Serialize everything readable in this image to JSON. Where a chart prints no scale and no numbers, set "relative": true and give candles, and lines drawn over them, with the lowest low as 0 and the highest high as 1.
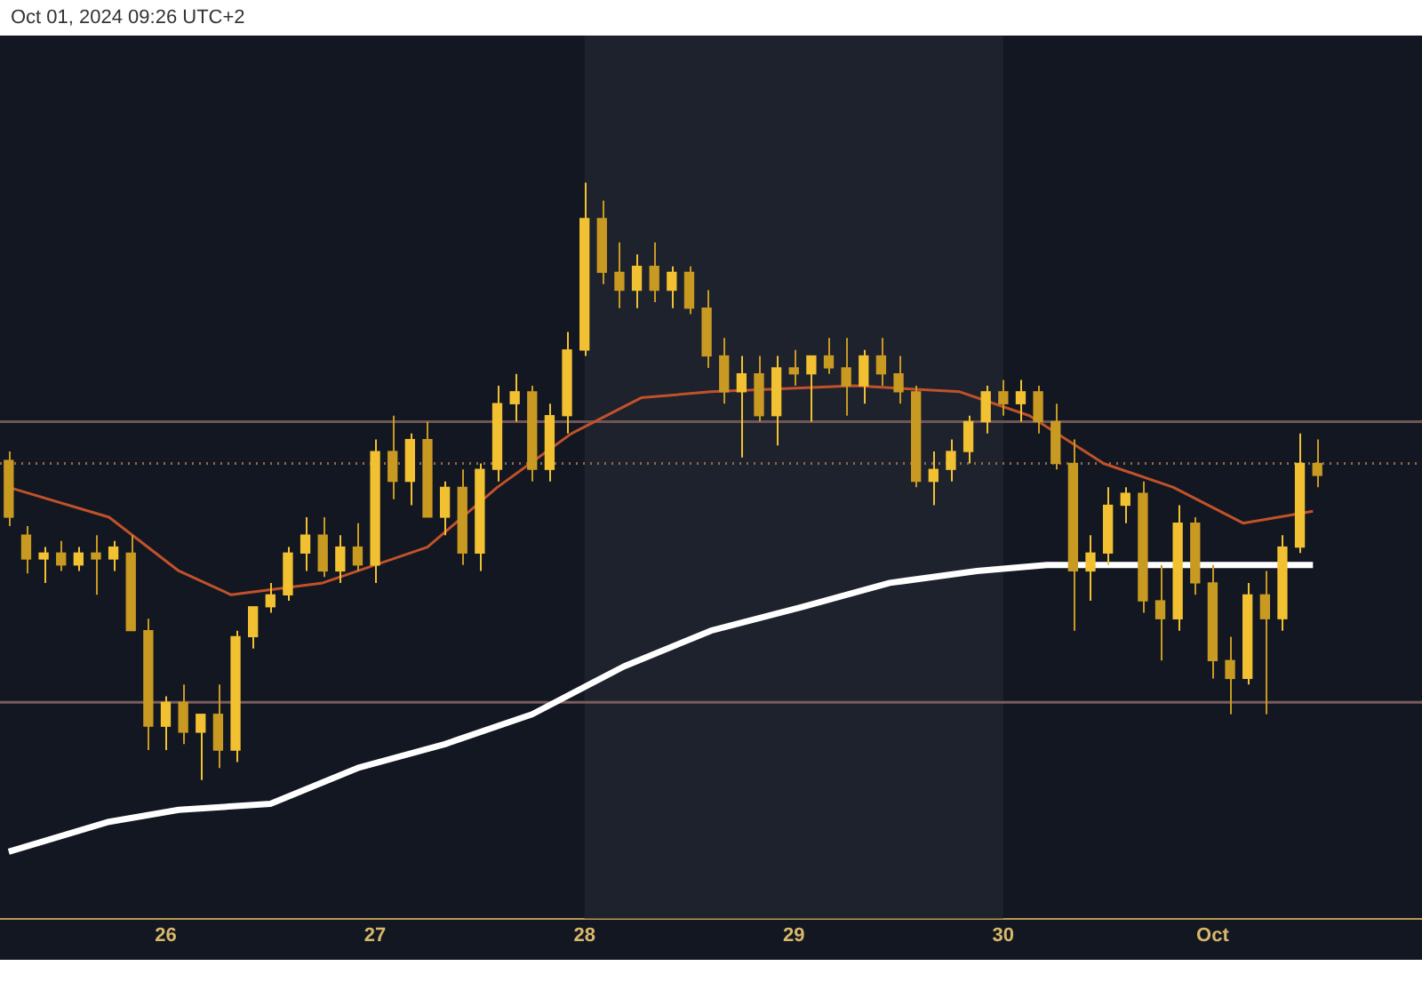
{
  "chart_data": {
    "type": "candlestick",
    "relative": true,
    "annotations": [
      "Oct 01, 2024 09:26 UTC+2"
    ],
    "xlim": [
      "2024-09-25T05:00",
      "2024-10-02T00:00"
    ],
    "xticks": [
      {
        "value": "2024-09-26",
        "label": "26"
      },
      {
        "value": "2024-09-27",
        "label": "27"
      },
      {
        "value": "2024-09-28",
        "label": "28"
      },
      {
        "value": "2024-09-29",
        "label": "29"
      },
      {
        "value": "2024-09-30",
        "label": "30"
      },
      {
        "value": "2024-10-01",
        "label": "Oct"
      }
    ],
    "grid": false,
    "bands": [
      {
        "axis": "x",
        "from": "2024-09-28",
        "to": "2024-09-30",
        "color": "#1e222d"
      }
    ],
    "ref_lines": [
      {
        "axis": "y",
        "value": 0.53,
        "color": "#8a6a4a",
        "line_style": "dotted"
      },
      {
        "axis": "y",
        "value": 0.13,
        "color": "#7a5c5c",
        "line_style": "solid"
      },
      {
        "axis": "y",
        "value": 0.6,
        "color": "#6e5656",
        "line_style": "solid"
      }
    ],
    "series": [
      {
        "type": "line",
        "color": "#ffffff",
        "x": [
          "2024-09-25T06:00",
          "2024-09-25T17:30",
          "2024-09-26T01:30",
          "2024-09-26T12:00",
          "2024-09-26T22:00",
          "2024-09-27T08:00",
          "2024-09-27T18:00",
          "2024-09-28T04:30",
          "2024-09-28T14:30",
          "2024-09-29T01:00",
          "2024-09-29T11:00",
          "2024-09-29T21:00",
          "2024-09-30T05:00",
          "2024-09-30T17:30",
          "2024-10-01T03:30",
          "2024-10-01T11:30"
        ],
        "values": [
          -0.12,
          -0.07,
          -0.05,
          -0.04,
          0.02,
          0.06,
          0.11,
          0.19,
          0.25,
          0.29,
          0.33,
          0.35,
          0.36,
          0.36,
          0.36,
          0.36
        ]
      },
      {
        "type": "line",
        "color": "#c0522a",
        "x": [
          "2024-09-25T06:00",
          "2024-09-25T17:30",
          "2024-09-26T01:30",
          "2024-09-26T07:30",
          "2024-09-26T18:00",
          "2024-09-27T06:00",
          "2024-09-27T14:00",
          "2024-09-27T22:30",
          "2024-09-28T06:30",
          "2024-09-28T14:30",
          "2024-09-29T07:00",
          "2024-09-29T19:00",
          "2024-09-30T03:00",
          "2024-09-30T11:30",
          "2024-09-30T19:30",
          "2024-10-01T03:30",
          "2024-10-01T11:30"
        ],
        "values": [
          0.49,
          0.44,
          0.35,
          0.31,
          0.33,
          0.39,
          0.49,
          0.58,
          0.64,
          0.65,
          0.66,
          0.65,
          0.61,
          0.53,
          0.49,
          0.43,
          0.45
        ]
      },
      {
        "colors": [
          "#c99a22",
          "#c99a22",
          "#f2c131",
          "#c99a22",
          "#f2c131",
          "#c99a22",
          "#f2c131",
          "#c99a22",
          "#c99a22",
          "#f2c131",
          "#c99a22",
          "#f2c131",
          "#c99a22",
          "#f2c131",
          "#f2c131",
          "#f2c131",
          "#f2c131",
          "#f2c131",
          "#c99a22",
          "#f2c131",
          "#c99a22",
          "#f2c131",
          "#c99a22",
          "#f2c131",
          "#c99a22",
          "#f2c131",
          "#c99a22",
          "#f2c131",
          "#f2c131",
          "#f2c131",
          "#c99a22",
          "#f2c131",
          "#f2c131",
          "#f2c131",
          "#c99a22",
          "#c99a22",
          "#f2c131",
          "#c99a22",
          "#f2c131",
          "#c99a22",
          "#c99a22",
          "#c99a22",
          "#f2c131",
          "#c99a22",
          "#f2c131",
          "#c99a22",
          "#f2c131",
          "#c99a22",
          "#c99a22",
          "#f2c131",
          "#c99a22",
          "#c99a22",
          "#c99a22",
          "#f2c131",
          "#f2c131",
          "#f2c131",
          "#f2c131",
          "#c99a22",
          "#f2c131",
          "#c99a22",
          "#c99a22",
          "#c99a22",
          "#f2c131",
          "#f2c131",
          "#f2c131",
          "#c99a22",
          "#c99a22",
          "#f2c131",
          "#c99a22",
          "#c99a22",
          "#c99a22",
          "#f2c131",
          "#c99a22",
          "#f2c131",
          "#f2c131",
          "#c99a22"
        ],
        "x": [
          "2024-09-25T06:00",
          "2024-09-25T08:00",
          "2024-09-25T10:00",
          "2024-09-25T12:00",
          "2024-09-25T14:00",
          "2024-09-25T16:00",
          "2024-09-25T18:00",
          "2024-09-25T20:00",
          "2024-09-25T22:00",
          "2024-09-26T00:00",
          "2024-09-26T02:00",
          "2024-09-26T04:00",
          "2024-09-26T06:00",
          "2024-09-26T08:00",
          "2024-09-26T10:00",
          "2024-09-26T12:00",
          "2024-09-26T14:00",
          "2024-09-26T16:00",
          "2024-09-26T18:00",
          "2024-09-26T20:00",
          "2024-09-26T22:00",
          "2024-09-27T00:00",
          "2024-09-27T02:00",
          "2024-09-27T04:00",
          "2024-09-27T06:00",
          "2024-09-27T08:00",
          "2024-09-27T10:00",
          "2024-09-27T12:00",
          "2024-09-27T14:00",
          "2024-09-27T16:00",
          "2024-09-27T18:00",
          "2024-09-27T20:00",
          "2024-09-27T22:00",
          "2024-09-28T00:00",
          "2024-09-28T02:00",
          "2024-09-28T04:00",
          "2024-09-28T06:00",
          "2024-09-28T08:00",
          "2024-09-28T10:00",
          "2024-09-28T12:00",
          "2024-09-28T14:00",
          "2024-09-28T16:00",
          "2024-09-28T18:00",
          "2024-09-28T20:00",
          "2024-09-28T22:00",
          "2024-09-29T00:00",
          "2024-09-29T02:00",
          "2024-09-29T04:00",
          "2024-09-29T06:00",
          "2024-09-29T08:00",
          "2024-09-29T10:00",
          "2024-09-29T12:00",
          "2024-09-29T14:00",
          "2024-09-29T16:00",
          "2024-09-29T18:00",
          "2024-09-29T20:00",
          "2024-09-29T22:00",
          "2024-09-30T00:00",
          "2024-09-30T02:00",
          "2024-09-30T04:00",
          "2024-09-30T06:00",
          "2024-09-30T08:00",
          "2024-09-30T10:00",
          "2024-09-30T12:00",
          "2024-09-30T14:00",
          "2024-09-30T16:00",
          "2024-09-30T18:00",
          "2024-09-30T20:00",
          "2024-09-30T22:00",
          "2024-10-01T00:00",
          "2024-10-01T02:00",
          "2024-10-01T04:00",
          "2024-10-01T06:00",
          "2024-10-01T08:00",
          "2024-10-01T10:00",
          "2024-10-01T12:00"
        ],
        "ohlc": [
          [
            0.535,
            0.55,
            0.425,
            0.44
          ],
          [
            0.41,
            0.425,
            0.346,
            0.37
          ],
          [
            0.37,
            0.39,
            0.33,
            0.38
          ],
          [
            0.38,
            0.4,
            0.35,
            0.36
          ],
          [
            0.36,
            0.39,
            0.35,
            0.38
          ],
          [
            0.38,
            0.41,
            0.31,
            0.37
          ],
          [
            0.37,
            0.4,
            0.35,
            0.39
          ],
          [
            0.38,
            0.41,
            0.25,
            0.25
          ],
          [
            0.25,
            0.27,
            0.05,
            0.09
          ],
          [
            0.09,
            0.14,
            0.05,
            0.13
          ],
          [
            0.13,
            0.16,
            0.06,
            0.08
          ],
          [
            0.08,
            0.11,
            0,
            0.11
          ],
          [
            0.11,
            0.16,
            0.02,
            0.05
          ],
          [
            0.05,
            0.25,
            0.03,
            0.24
          ],
          [
            0.24,
            0.29,
            0.22,
            0.29
          ],
          [
            0.29,
            0.33,
            0.28,
            0.31
          ],
          [
            0.31,
            0.39,
            0.3,
            0.38
          ],
          [
            0.38,
            0.44,
            0.35,
            0.41
          ],
          [
            0.41,
            0.44,
            0.34,
            0.35
          ],
          [
            0.35,
            0.41,
            0.33,
            0.39
          ],
          [
            0.39,
            0.43,
            0.35,
            0.36
          ],
          [
            0.36,
            0.57,
            0.33,
            0.55
          ],
          [
            0.55,
            0.61,
            0.47,
            0.5
          ],
          [
            0.5,
            0.58,
            0.46,
            0.57
          ],
          [
            0.57,
            0.6,
            0.44,
            0.44
          ],
          [
            0.44,
            0.5,
            0.41,
            0.49
          ],
          [
            0.49,
            0.52,
            0.36,
            0.38
          ],
          [
            0.38,
            0.53,
            0.35,
            0.52
          ],
          [
            0.52,
            0.66,
            0.5,
            0.63
          ],
          [
            0.63,
            0.68,
            0.6,
            0.65
          ],
          [
            0.65,
            0.66,
            0.5,
            0.52
          ],
          [
            0.52,
            0.63,
            0.5,
            0.61
          ],
          [
            0.61,
            0.75,
            0.58,
            0.72
          ],
          [
            0.72,
            1,
            0.71,
            0.94
          ],
          [
            0.94,
            0.97,
            0.83,
            0.85
          ],
          [
            0.85,
            0.9,
            0.79,
            0.82
          ],
          [
            0.82,
            0.88,
            0.79,
            0.86
          ],
          [
            0.86,
            0.9,
            0.8,
            0.82
          ],
          [
            0.82,
            0.86,
            0.79,
            0.85
          ],
          [
            0.85,
            0.86,
            0.78,
            0.79
          ],
          [
            0.79,
            0.82,
            0.69,
            0.71
          ],
          [
            0.71,
            0.74,
            0.63,
            0.65
          ],
          [
            0.65,
            0.71,
            0.54,
            0.68
          ],
          [
            0.68,
            0.71,
            0.6,
            0.61
          ],
          [
            0.61,
            0.71,
            0.56,
            0.69
          ],
          [
            0.69,
            0.72,
            0.66,
            0.68
          ],
          [
            0.68,
            0.71,
            0.6,
            0.71
          ],
          [
            0.71,
            0.74,
            0.68,
            0.69
          ],
          [
            0.69,
            0.74,
            0.61,
            0.66
          ],
          [
            0.66,
            0.72,
            0.63,
            0.71
          ],
          [
            0.71,
            0.74,
            0.66,
            0.68
          ],
          [
            0.68,
            0.71,
            0.63,
            0.65
          ],
          [
            0.65,
            0.66,
            0.49,
            0.5
          ],
          [
            0.5,
            0.55,
            0.46,
            0.52
          ],
          [
            0.52,
            0.57,
            0.5,
            0.55
          ],
          [
            0.55,
            0.61,
            0.53,
            0.6
          ],
          [
            0.6,
            0.66,
            0.58,
            0.65
          ],
          [
            0.65,
            0.67,
            0.61,
            0.63
          ],
          [
            0.63,
            0.67,
            0.6,
            0.65
          ],
          [
            0.65,
            0.66,
            0.58,
            0.6
          ],
          [
            0.6,
            0.63,
            0.52,
            0.53
          ],
          [
            0.53,
            0.57,
            0.25,
            0.35
          ],
          [
            0.35,
            0.41,
            0.3,
            0.38
          ],
          [
            0.38,
            0.49,
            0.36,
            0.46
          ],
          [
            0.46,
            0.49,
            0.43,
            0.48
          ],
          [
            0.48,
            0.5,
            0.28,
            0.3
          ],
          [
            0.3,
            0.36,
            0.2,
            0.27
          ],
          [
            0.27,
            0.46,
            0.25,
            0.43
          ],
          [
            0.43,
            0.44,
            0.31,
            0.33
          ],
          [
            0.33,
            0.36,
            0.17,
            0.2
          ],
          [
            0.2,
            0.24,
            0.11,
            0.17
          ],
          [
            0.17,
            0.33,
            0.16,
            0.31
          ],
          [
            0.31,
            0.35,
            0.11,
            0.27
          ],
          [
            0.27,
            0.41,
            0.25,
            0.39
          ],
          [
            0.39,
            0.58,
            0.38,
            0.53
          ],
          [
            0.53,
            0.57,
            0.49,
            0.51
          ]
        ]
      }
    ]
  }
}
